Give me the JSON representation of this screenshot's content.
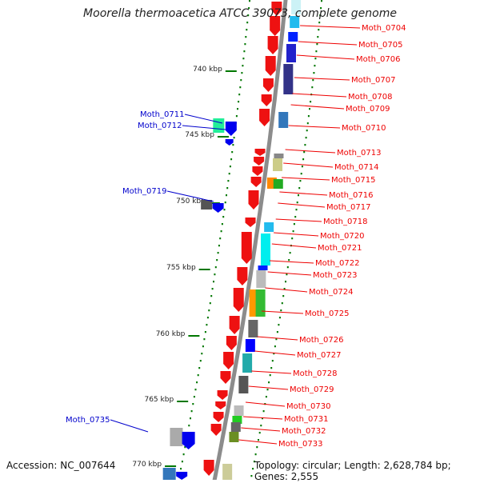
{
  "title": "Moorella thermoacetica ATCC 39073, complete genome",
  "footer": {
    "accession": "Accession: NC_007644",
    "summary": "Topology: circular; Length: 2,628,784 bp; Genes: 2,555"
  },
  "ruler": [
    {
      "label": "740 kbp"
    },
    {
      "label": "745 kbp"
    },
    {
      "label": "750 kbp"
    },
    {
      "label": "755 kbp"
    },
    {
      "label": "760 kbp"
    },
    {
      "label": "765 kbp"
    },
    {
      "label": "770 kbp"
    }
  ],
  "genes_right": [
    "Moth_0704",
    "Moth_0705",
    "Moth_0706",
    "Moth_0707",
    "Moth_0708",
    "Moth_0709",
    "Moth_0710",
    "Moth_0713",
    "Moth_0714",
    "Moth_0715",
    "Moth_0716",
    "Moth_0717",
    "Moth_0718",
    "Moth_0720",
    "Moth_0721",
    "Moth_0722",
    "Moth_0723",
    "Moth_0724",
    "Moth_0725",
    "Moth_0726",
    "Moth_0727",
    "Moth_0728",
    "Moth_0729",
    "Moth_0730",
    "Moth_0731",
    "Moth_0732",
    "Moth_0733"
  ],
  "genes_left": [
    "Moth_0711",
    "Moth_0712",
    "Moth_0719",
    "Moth_0735"
  ],
  "colors": {
    "forward_label": "#ee0000",
    "reverse_label": "#0000cc",
    "backbone": "#8c8c8c"
  }
}
